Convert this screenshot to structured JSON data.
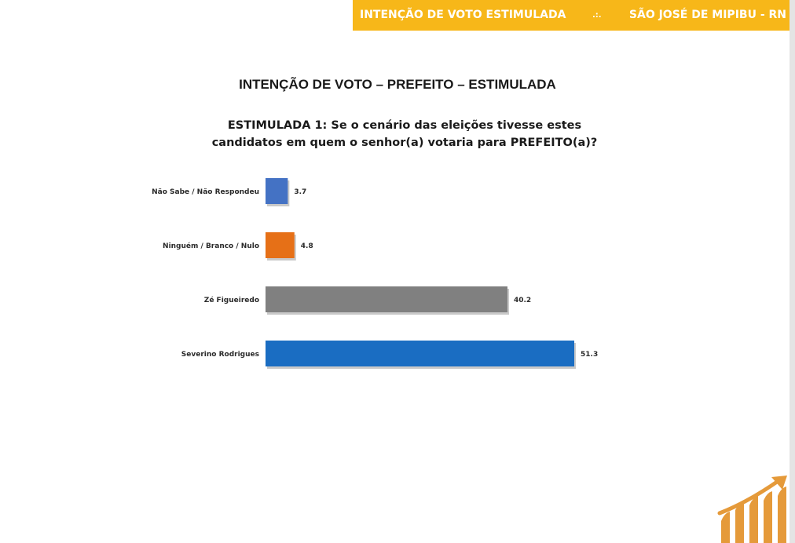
{
  "banner": {
    "left": "INTENÇÃO DE VOTO ESTIMULADA",
    "separator": ".:.",
    "right": "SÃO JOSÉ DE MIPIBU - RN",
    "color": "#f7b719"
  },
  "question": {
    "line1": "ESTIMULADA 1: Se o cenário das eleições tivesse estes",
    "line2": "candidatos em quem o senhor(a) votaria para PREFEITO(a)?"
  },
  "logo": {
    "icon": "growth-chart-icon",
    "color": "#e59a3a"
  },
  "chart_data": {
    "type": "bar",
    "orientation": "horizontal",
    "title": "INTENÇÃO DE VOTO – PREFEITO – ESTIMULADA",
    "categories": [
      "Não Sabe / Não Respondeu",
      "Ninguém / Branco / Nulo",
      "Zé Figueiredo",
      "Severino Rodrigues"
    ],
    "values": [
      3.7,
      4.8,
      40.2,
      51.3
    ],
    "value_labels": [
      "3.7",
      "4.8",
      "40.2",
      "51.3"
    ],
    "colors": [
      "#4472c4",
      "#e67017",
      "#808080",
      "#1a6dc2"
    ],
    "xlabel": "",
    "ylabel": "",
    "xlim": [
      0,
      51.3
    ],
    "grid": false,
    "legend": "none"
  }
}
